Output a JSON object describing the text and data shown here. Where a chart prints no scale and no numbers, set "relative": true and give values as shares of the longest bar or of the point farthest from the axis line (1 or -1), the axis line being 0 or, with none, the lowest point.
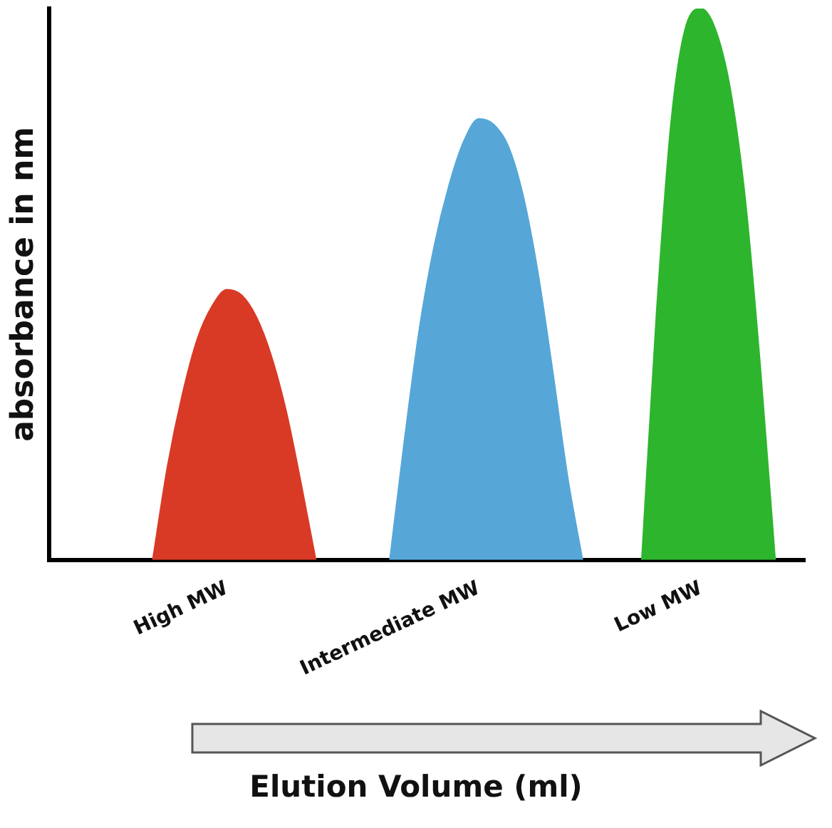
{
  "chart_data": {
    "type": "area",
    "relative": true,
    "xlabel": "Elution Volume (ml)",
    "ylabel": "absorbance in nm",
    "grid": false,
    "legend": false,
    "categories": [
      null,
      null,
      null,
      null,
      null,
      null,
      null,
      null,
      null,
      null,
      null,
      null,
      "High MW",
      null,
      null,
      null,
      null,
      null,
      null,
      null,
      null,
      null,
      null,
      null,
      null,
      null,
      null,
      null,
      null,
      "Intermediate MW",
      null,
      null,
      null,
      null,
      null,
      null,
      null,
      null,
      null,
      null,
      null,
      null,
      null,
      null,
      "Low MW",
      null,
      null,
      null,
      null,
      null,
      null,
      null
    ],
    "series": [
      {
        "color": "#d93a26",
        "values": [
          null,
          null,
          null,
          null,
          null,
          null,
          null,
          0,
          0.17,
          0.3,
          0.4,
          0.46,
          0.49,
          0.48,
          0.44,
          0.37,
          0.27,
          0.14,
          0,
          null,
          null,
          null,
          null,
          null,
          null,
          null,
          null,
          null,
          null,
          null,
          null,
          null,
          null,
          null,
          null,
          null,
          null,
          null,
          null,
          null,
          null,
          null,
          null,
          null,
          null,
          null,
          null,
          null,
          null,
          null,
          null,
          null
        ]
      },
      {
        "color": "#56a7d8",
        "values": [
          null,
          null,
          null,
          null,
          null,
          null,
          null,
          null,
          null,
          null,
          null,
          null,
          null,
          null,
          null,
          null,
          null,
          null,
          null,
          null,
          null,
          null,
          null,
          0,
          0.22,
          0.42,
          0.57,
          0.68,
          0.76,
          0.8,
          0.79,
          0.75,
          0.66,
          0.52,
          0.34,
          0.15,
          0,
          null,
          null,
          null,
          null,
          null,
          null,
          null,
          null,
          null,
          null,
          null,
          null,
          null,
          null,
          null
        ]
      },
      {
        "color": "#2eb52e",
        "values": [
          null,
          null,
          null,
          null,
          null,
          null,
          null,
          null,
          null,
          null,
          null,
          null,
          null,
          null,
          null,
          null,
          null,
          null,
          null,
          null,
          null,
          null,
          null,
          null,
          null,
          null,
          null,
          null,
          null,
          null,
          null,
          null,
          null,
          null,
          null,
          null,
          null,
          null,
          null,
          null,
          0,
          0.45,
          0.8,
          0.97,
          1,
          0.96,
          0.85,
          0.65,
          0.35,
          0,
          null,
          null
        ]
      }
    ]
  }
}
